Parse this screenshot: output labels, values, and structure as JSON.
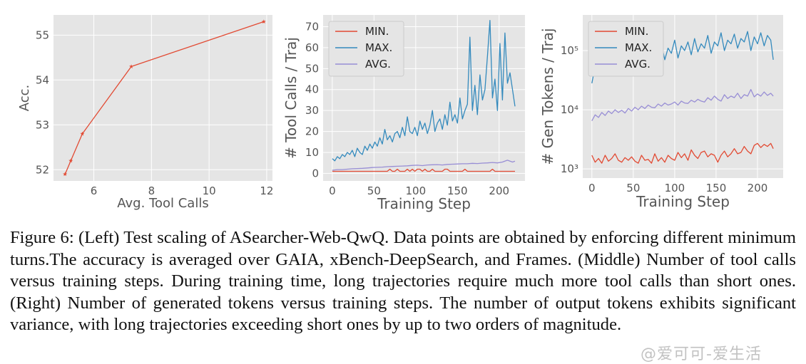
{
  "chart_data": [
    {
      "type": "line",
      "title": "",
      "xlabel": "Avg. Tool Calls",
      "ylabel": "Acc.",
      "xlim": [
        4.6,
        12.2
      ],
      "ylim": [
        51.75,
        55.45
      ],
      "xticks": [
        6,
        8,
        10,
        12
      ],
      "yticks": [
        52,
        53,
        54,
        55
      ],
      "grid": true,
      "legend": "none",
      "series": [
        {
          "color": "#e24a33",
          "marker": "star",
          "x": [
            5.0,
            5.2,
            5.6,
            7.3,
            11.9
          ],
          "y": [
            51.9,
            52.2,
            52.8,
            54.3,
            55.3
          ]
        }
      ]
    },
    {
      "type": "line",
      "title": "",
      "xlabel": "Training Step",
      "ylabel": "# Tool Calls / Traj",
      "xlim": [
        -11,
        231
      ],
      "ylim": [
        -3.6,
        75.6
      ],
      "xticks": [
        0,
        50,
        100,
        150,
        200
      ],
      "yticks": [
        0,
        10,
        20,
        30,
        40,
        50,
        60,
        70
      ],
      "grid": true,
      "legend": "top-left",
      "series": [
        {
          "name": "MIN.",
          "color": "#e24a33",
          "x": [
            0,
            3,
            6,
            9,
            12,
            15,
            18,
            21,
            24,
            27,
            30,
            33,
            36,
            39,
            42,
            45,
            48,
            51,
            54,
            57,
            60,
            63,
            66,
            69,
            72,
            75,
            78,
            81,
            84,
            87,
            90,
            93,
            96,
            99,
            102,
            105,
            108,
            111,
            114,
            117,
            120,
            123,
            126,
            129,
            132,
            135,
            138,
            141,
            144,
            147,
            150,
            153,
            156,
            159,
            162,
            165,
            168,
            171,
            174,
            177,
            180,
            183,
            186,
            189,
            192,
            195,
            198,
            201,
            204,
            207,
            210,
            213,
            216,
            219
          ],
          "y": [
            1,
            1,
            1,
            1,
            1,
            1,
            1,
            1,
            1,
            1,
            1,
            1,
            1,
            1,
            1,
            1,
            1,
            1,
            1,
            1,
            1,
            1,
            1,
            2,
            1,
            1,
            2,
            1,
            1,
            1,
            2,
            1,
            2,
            1,
            2,
            2,
            1,
            2,
            1,
            1,
            2,
            1,
            1,
            1,
            1,
            2,
            2,
            1,
            1,
            1,
            1,
            1,
            1,
            2,
            1,
            1,
            1,
            1,
            1,
            1,
            1,
            1,
            1,
            1,
            2,
            1,
            1,
            1,
            1,
            1,
            1,
            1,
            1,
            1
          ]
        },
        {
          "name": "MAX.",
          "color": "#348abd",
          "x": [
            0,
            3,
            6,
            9,
            12,
            15,
            18,
            21,
            24,
            27,
            30,
            33,
            36,
            39,
            42,
            45,
            48,
            51,
            54,
            57,
            60,
            63,
            66,
            69,
            72,
            75,
            78,
            81,
            84,
            87,
            90,
            93,
            96,
            99,
            102,
            105,
            108,
            111,
            114,
            117,
            120,
            123,
            126,
            129,
            132,
            135,
            138,
            141,
            144,
            147,
            150,
            153,
            156,
            159,
            162,
            165,
            168,
            171,
            174,
            177,
            180,
            183,
            186,
            189,
            192,
            195,
            198,
            201,
            204,
            207,
            210,
            213,
            216,
            219
          ],
          "y": [
            7,
            6,
            8,
            7,
            9,
            8,
            10,
            9,
            11,
            8,
            12,
            10,
            9,
            13,
            11,
            14,
            12,
            15,
            13,
            17,
            14,
            21,
            16,
            18,
            15,
            19,
            20,
            17,
            22,
            18,
            27,
            20,
            19,
            22,
            18,
            25,
            21,
            24,
            19,
            23,
            30,
            20,
            24,
            26,
            21,
            28,
            23,
            34,
            25,
            28,
            24,
            36,
            26,
            30,
            33,
            65,
            30,
            42,
            28,
            47,
            35,
            40,
            56,
            73,
            36,
            45,
            30,
            62,
            35,
            67,
            43,
            48,
            40,
            32
          ]
        },
        {
          "name": "AVG.",
          "color": "#988ed5",
          "x": [
            0,
            6,
            12,
            18,
            24,
            30,
            36,
            42,
            48,
            54,
            60,
            66,
            72,
            78,
            84,
            90,
            96,
            102,
            108,
            114,
            120,
            126,
            132,
            138,
            144,
            150,
            156,
            162,
            168,
            174,
            180,
            186,
            192,
            198,
            204,
            210,
            216,
            219
          ],
          "y": [
            1.5,
            1.8,
            1.8,
            2.0,
            2.2,
            2.3,
            2.4,
            2.6,
            2.8,
            2.9,
            3.0,
            3.2,
            3.3,
            3.4,
            3.5,
            3.6,
            3.8,
            3.9,
            3.7,
            4.0,
            4.1,
            4.2,
            4.0,
            4.3,
            4.4,
            4.5,
            4.6,
            4.6,
            4.8,
            4.7,
            4.9,
            5.0,
            5.2,
            5.0,
            5.4,
            6.3,
            5.4,
            5.8
          ]
        }
      ]
    },
    {
      "type": "line",
      "title": "",
      "xlabel": "Training Step",
      "ylabel": "# Gen Tokens / Traj",
      "yscale": "log",
      "xlim": [
        -11,
        231
      ],
      "ylim": [
        700,
        400000
      ],
      "xticks": [
        0,
        50,
        100,
        150,
        200
      ],
      "ytick_labels": [
        "10³",
        "10⁴",
        "10⁵"
      ],
      "grid": true,
      "legend": "top-left",
      "series": [
        {
          "name": "MIN.",
          "color": "#e24a33",
          "x": [
            0,
            4,
            8,
            12,
            16,
            20,
            24,
            28,
            32,
            36,
            40,
            44,
            48,
            52,
            56,
            60,
            64,
            68,
            72,
            76,
            80,
            84,
            88,
            92,
            96,
            100,
            104,
            108,
            112,
            116,
            120,
            124,
            128,
            132,
            136,
            140,
            144,
            148,
            152,
            156,
            160,
            164,
            168,
            172,
            176,
            180,
            184,
            188,
            192,
            196,
            200,
            204,
            208,
            212,
            216,
            219
          ],
          "y": [
            1700,
            1300,
            1500,
            1250,
            1700,
            1350,
            1500,
            1800,
            1400,
            1300,
            1550,
            1400,
            1600,
            1350,
            1250,
            1700,
            1400,
            1450,
            1250,
            1800,
            1350,
            1550,
            1300,
            1700,
            1500,
            1400,
            1900,
            1550,
            1800,
            1400,
            2100,
            1700,
            1500,
            1900,
            2000,
            1600,
            1800,
            1700,
            1300,
            1700,
            2000,
            1600,
            1800,
            2200,
            1800,
            1900,
            2400,
            2000,
            1800,
            2500,
            2700,
            2300,
            2600,
            2400,
            2700,
            2200
          ]
        },
        {
          "name": "MAX.",
          "color": "#348abd",
          "x": [
            0,
            4,
            8,
            12,
            16,
            20,
            24,
            28,
            32,
            36,
            40,
            44,
            48,
            52,
            56,
            60,
            64,
            68,
            72,
            76,
            80,
            84,
            88,
            92,
            96,
            100,
            104,
            108,
            112,
            116,
            120,
            124,
            128,
            132,
            136,
            140,
            144,
            148,
            152,
            156,
            160,
            164,
            168,
            172,
            176,
            180,
            184,
            188,
            192,
            196,
            200,
            204,
            208,
            212,
            216,
            219
          ],
          "y": [
            28000,
            55000,
            38000,
            62000,
            45000,
            80000,
            52000,
            70000,
            58000,
            90000,
            40000,
            75000,
            65000,
            100000,
            50000,
            85000,
            70000,
            120000,
            60000,
            95000,
            80000,
            130000,
            70000,
            110000,
            90000,
            150000,
            75000,
            120000,
            100000,
            140000,
            85000,
            160000,
            95000,
            130000,
            110000,
            180000,
            90000,
            140000,
            120000,
            200000,
            100000,
            150000,
            130000,
            190000,
            110000,
            160000,
            140000,
            210000,
            100000,
            170000,
            130000,
            200000,
            120000,
            180000,
            150000,
            70000
          ]
        },
        {
          "name": "AVG.",
          "color": "#988ed5",
          "x": [
            0,
            4,
            8,
            12,
            16,
            20,
            24,
            28,
            32,
            36,
            40,
            44,
            48,
            52,
            56,
            60,
            64,
            68,
            72,
            76,
            80,
            84,
            88,
            92,
            96,
            100,
            104,
            108,
            112,
            116,
            120,
            124,
            128,
            132,
            136,
            140,
            144,
            148,
            152,
            156,
            160,
            164,
            168,
            172,
            176,
            180,
            184,
            188,
            192,
            196,
            200,
            204,
            208,
            212,
            216,
            219
          ],
          "y": [
            6500,
            8200,
            7400,
            9000,
            8000,
            9500,
            8600,
            10000,
            9000,
            9800,
            8800,
            10500,
            9500,
            11000,
            10000,
            11500,
            10500,
            12000,
            11000,
            10800,
            12500,
            11500,
            13000,
            12000,
            12500,
            13500,
            12000,
            14000,
            13000,
            12800,
            14500,
            13500,
            15000,
            14000,
            13500,
            16000,
            14500,
            17000,
            15000,
            14000,
            18000,
            15500,
            17000,
            16000,
            19000,
            15500,
            18000,
            17000,
            22000,
            16500,
            18500,
            17000,
            20000,
            17500,
            19000,
            17000
          ]
        }
      ]
    }
  ],
  "caption": {
    "lines": [
      "Figure 6: (Left) Test scaling of ASearcher-Web-QwQ. Data points are obtained by enforcing different",
      "minimum turns.The accuracy is averaged over GAIA, xBench-DeepSearch, and Frames. (Middle)",
      "Number of tool calls versus training steps. During training time, long trajectories require much more",
      "tool calls than short ones. (Right) Number of generated tokens versus training steps. The number of",
      "output tokens exhibits significant variance, with long trajectories exceeding short ones by up to two",
      "orders of magnitude."
    ]
  },
  "watermark": "@爱可可-爱生活"
}
